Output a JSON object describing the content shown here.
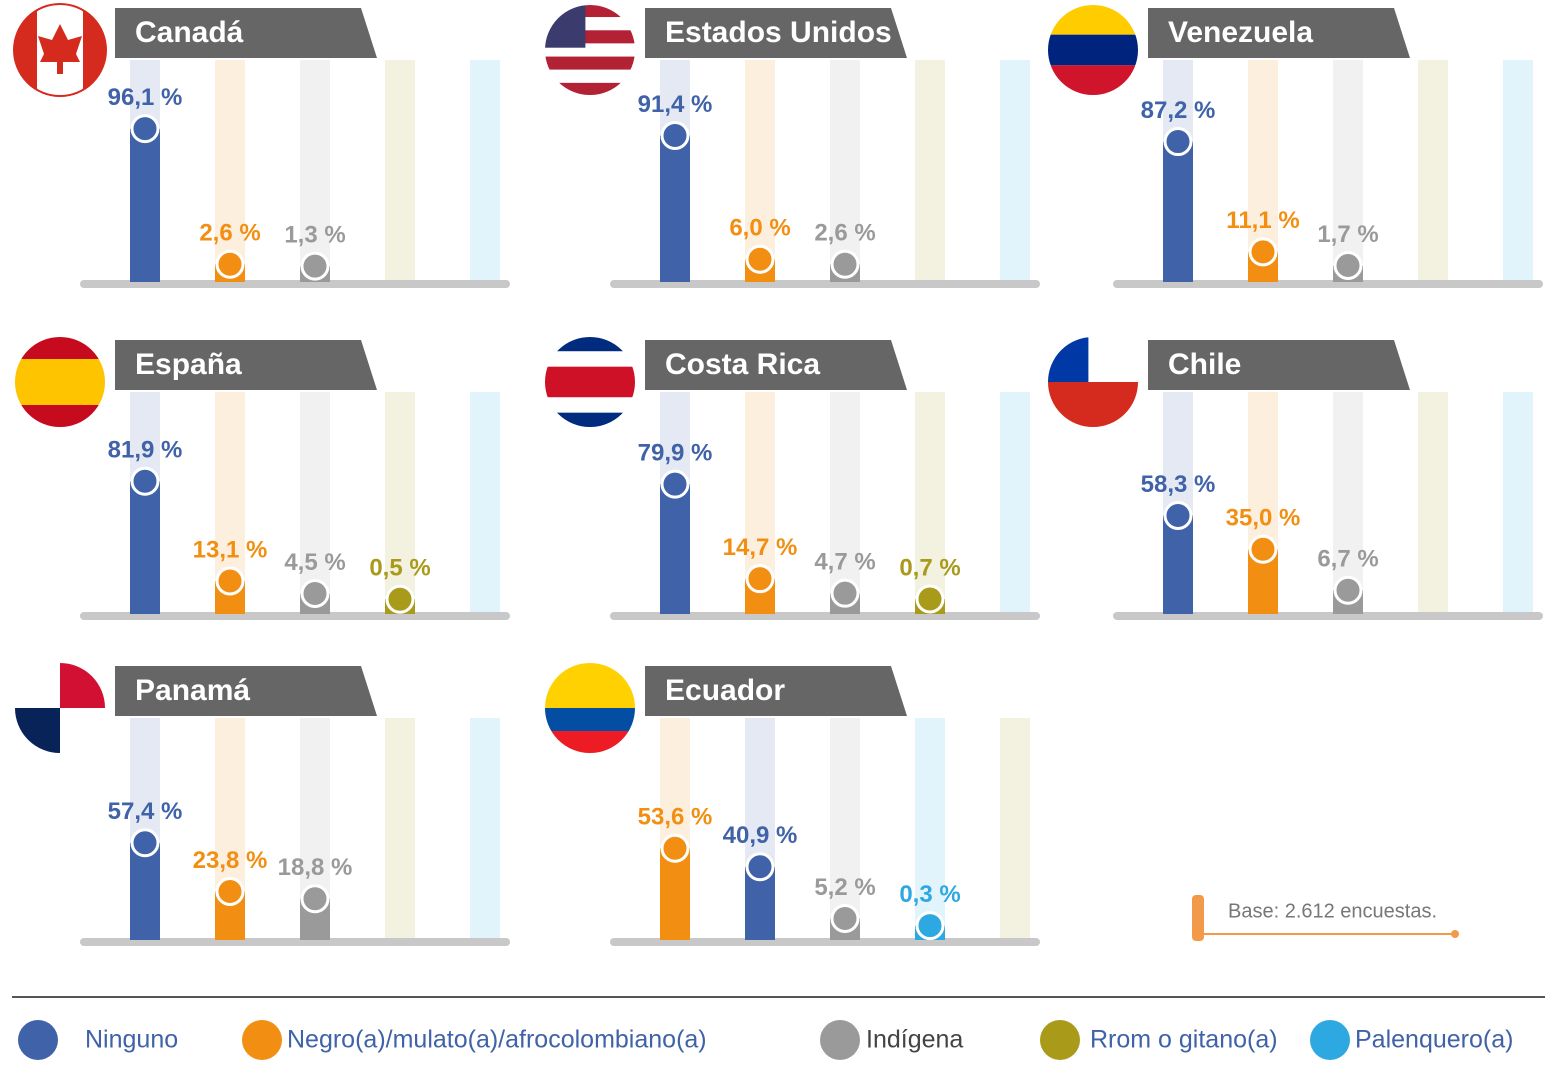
{
  "chart_data": [
    {
      "type": "bar",
      "title": "Canadá",
      "series": [
        {
          "name": "Ninguno",
          "color": "#3f62a8",
          "values": [
            96.1
          ],
          "value_labels": [
            "96,1 %"
          ]
        },
        {
          "name": "Negro(a)/mulato(a)/afrocolombiano(a)",
          "color": "#f28f12",
          "values": [
            2.6
          ],
          "value_labels": [
            "2,6 %"
          ]
        },
        {
          "name": "Indígena",
          "color": "#9a9a9a",
          "values": [
            1.3
          ],
          "value_labels": [
            "1,3 %"
          ]
        },
        {
          "name": "Rrom o gitano(a)",
          "color": "#a99a1a",
          "values": [
            null
          ],
          "value_labels": [
            null
          ]
        },
        {
          "name": "Palenquero(a)",
          "color": "#2ea8e0",
          "values": [
            null
          ],
          "value_labels": [
            null
          ]
        }
      ]
    },
    {
      "type": "bar",
      "title": "Estados Unidos",
      "series": [
        {
          "name": "Ninguno",
          "color": "#3f62a8",
          "values": [
            91.4
          ],
          "value_labels": [
            "91,4 %"
          ]
        },
        {
          "name": "Negro(a)/mulato(a)/afrocolombiano(a)",
          "color": "#f28f12",
          "values": [
            6.0
          ],
          "value_labels": [
            "6,0 %"
          ]
        },
        {
          "name": "Indígena",
          "color": "#9a9a9a",
          "values": [
            2.6
          ],
          "value_labels": [
            "2,6 %"
          ]
        },
        {
          "name": "Rrom o gitano(a)",
          "color": "#a99a1a",
          "values": [
            null
          ],
          "value_labels": [
            null
          ]
        },
        {
          "name": "Palenquero(a)",
          "color": "#2ea8e0",
          "values": [
            null
          ],
          "value_labels": [
            null
          ]
        }
      ]
    },
    {
      "type": "bar",
      "title": "Venezuela",
      "series": [
        {
          "name": "Ninguno",
          "color": "#3f62a8",
          "values": [
            87.2
          ],
          "value_labels": [
            "87,2 %"
          ]
        },
        {
          "name": "Negro(a)/mulato(a)/afrocolombiano(a)",
          "color": "#f28f12",
          "values": [
            11.1
          ],
          "value_labels": [
            "11,1 %"
          ]
        },
        {
          "name": "Indígena",
          "color": "#9a9a9a",
          "values": [
            1.7
          ],
          "value_labels": [
            "1,7 %"
          ]
        },
        {
          "name": "Rrom o gitano(a)",
          "color": "#a99a1a",
          "values": [
            null
          ],
          "value_labels": [
            null
          ]
        },
        {
          "name": "Palenquero(a)",
          "color": "#2ea8e0",
          "values": [
            null
          ],
          "value_labels": [
            null
          ]
        }
      ]
    },
    {
      "type": "bar",
      "title": "España",
      "series": [
        {
          "name": "Ninguno",
          "color": "#3f62a8",
          "values": [
            81.9
          ],
          "value_labels": [
            "81,9 %"
          ]
        },
        {
          "name": "Negro(a)/mulato(a)/afrocolombiano(a)",
          "color": "#f28f12",
          "values": [
            13.1
          ],
          "value_labels": [
            "13,1 %"
          ]
        },
        {
          "name": "Indígena",
          "color": "#9a9a9a",
          "values": [
            4.5
          ],
          "value_labels": [
            "4,5 %"
          ]
        },
        {
          "name": "Rrom o gitano(a)",
          "color": "#a99a1a",
          "values": [
            0.5
          ],
          "value_labels": [
            "0,5 %"
          ]
        },
        {
          "name": "Palenquero(a)",
          "color": "#2ea8e0",
          "values": [
            null
          ],
          "value_labels": [
            null
          ]
        }
      ]
    },
    {
      "type": "bar",
      "title": "Costa Rica",
      "series": [
        {
          "name": "Ninguno",
          "color": "#3f62a8",
          "values": [
            79.9
          ],
          "value_labels": [
            "79,9 %"
          ]
        },
        {
          "name": "Negro(a)/mulato(a)/afrocolombiano(a)",
          "color": "#f28f12",
          "values": [
            14.7
          ],
          "value_labels": [
            "14,7 %"
          ]
        },
        {
          "name": "Indígena",
          "color": "#9a9a9a",
          "values": [
            4.7
          ],
          "value_labels": [
            "4,7 %"
          ]
        },
        {
          "name": "Rrom o gitano(a)",
          "color": "#a99a1a",
          "values": [
            0.7
          ],
          "value_labels": [
            "0,7 %"
          ]
        },
        {
          "name": "Palenquero(a)",
          "color": "#2ea8e0",
          "values": [
            null
          ],
          "value_labels": [
            null
          ]
        }
      ]
    },
    {
      "type": "bar",
      "title": "Chile",
      "series": [
        {
          "name": "Ninguno",
          "color": "#3f62a8",
          "values": [
            58.3
          ],
          "value_labels": [
            "58,3 %"
          ]
        },
        {
          "name": "Negro(a)/mulato(a)/afrocolombiano(a)",
          "color": "#f28f12",
          "values": [
            35.0
          ],
          "value_labels": [
            "35,0 %"
          ]
        },
        {
          "name": "Indígena",
          "color": "#9a9a9a",
          "values": [
            6.7
          ],
          "value_labels": [
            "6,7 %"
          ]
        },
        {
          "name": "Rrom o gitano(a)",
          "color": "#a99a1a",
          "values": [
            null
          ],
          "value_labels": [
            null
          ]
        },
        {
          "name": "Palenquero(a)",
          "color": "#2ea8e0",
          "values": [
            null
          ],
          "value_labels": [
            null
          ]
        }
      ]
    },
    {
      "type": "bar",
      "title": "Panamá",
      "series": [
        {
          "name": "Ninguno",
          "color": "#3f62a8",
          "values": [
            57.4
          ],
          "value_labels": [
            "57,4 %"
          ]
        },
        {
          "name": "Negro(a)/mulato(a)/afrocolombiano(a)",
          "color": "#f28f12",
          "values": [
            23.8
          ],
          "value_labels": [
            "23,8 %"
          ]
        },
        {
          "name": "Indígena",
          "color": "#9a9a9a",
          "values": [
            18.8
          ],
          "value_labels": [
            "18,8 %"
          ]
        },
        {
          "name": "Rrom o gitano(a)",
          "color": "#a99a1a",
          "values": [
            null
          ],
          "value_labels": [
            null
          ]
        },
        {
          "name": "Palenquero(a)",
          "color": "#2ea8e0",
          "values": [
            null
          ],
          "value_labels": [
            null
          ]
        }
      ]
    },
    {
      "type": "bar",
      "title": "Ecuador",
      "series": [
        {
          "name": "Negro(a)/mulato(a)/afrocolombiano(a)",
          "color": "#f28f12",
          "values": [
            53.6
          ],
          "value_labels": [
            "53,6 %"
          ]
        },
        {
          "name": "Ninguno",
          "color": "#3f62a8",
          "values": [
            40.9
          ],
          "value_labels": [
            "40,9 %"
          ]
        },
        {
          "name": "Indígena",
          "color": "#9a9a9a",
          "values": [
            5.2
          ],
          "value_labels": [
            "5,2 %"
          ]
        },
        {
          "name": "Palenquero(a)",
          "color": "#2ea8e0",
          "values": [
            0.3
          ],
          "value_labels": [
            "0,3 %"
          ]
        },
        {
          "name": "Rrom o gitano(a)",
          "color": "#a99a1a",
          "values": [
            null
          ],
          "value_labels": [
            null
          ]
        }
      ]
    }
  ],
  "footnote": "Base: 2.612 encuestas."
}
